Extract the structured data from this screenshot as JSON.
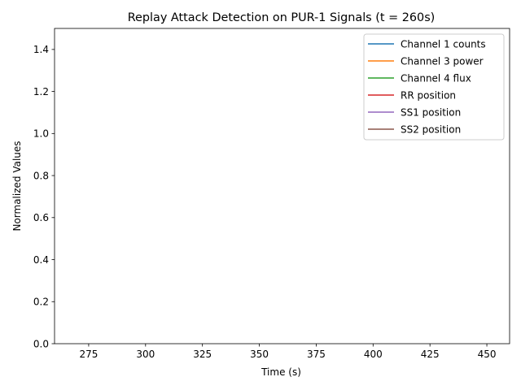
{
  "chart_data": {
    "type": "line",
    "title": "Replay Attack Detection on PUR-1 Signals (t = 260s)",
    "xlabel": "Time (s)",
    "ylabel": "Normalized Values",
    "xlim": [
      260,
      460
    ],
    "ylim": [
      0.0,
      1.5
    ],
    "x_ticks": [
      275,
      300,
      325,
      350,
      375,
      400,
      425,
      450
    ],
    "x_tick_labels": [
      "275",
      "300",
      "325",
      "350",
      "375",
      "400",
      "425",
      "450"
    ],
    "y_ticks": [
      0.0,
      0.2,
      0.4,
      0.6,
      0.8,
      1.0,
      1.2,
      1.4
    ],
    "y_tick_labels": [
      "0.0",
      "0.2",
      "0.4",
      "0.6",
      "0.8",
      "1.0",
      "1.2",
      "1.4"
    ],
    "grid": false,
    "legend_position": "top-right",
    "series": [
      {
        "name": "Channel 1 counts",
        "color": "#1f77b4",
        "x": [],
        "values": []
      },
      {
        "name": "Channel 3 power",
        "color": "#ff7f0e",
        "x": [],
        "values": []
      },
      {
        "name": "Channel 4 flux",
        "color": "#2ca02c",
        "x": [],
        "values": []
      },
      {
        "name": "RR position",
        "color": "#d62728",
        "x": [],
        "values": []
      },
      {
        "name": "SS1 position",
        "color": "#9467bd",
        "x": [],
        "values": []
      },
      {
        "name": "SS2 position",
        "color": "#8c564b",
        "x": [],
        "values": []
      }
    ]
  }
}
